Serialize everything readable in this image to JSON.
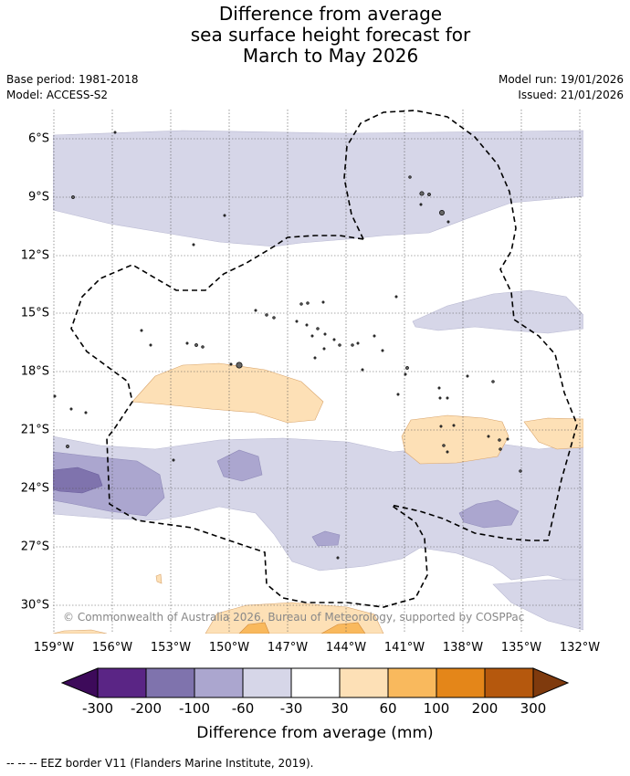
{
  "title_lines": [
    "Difference from average",
    "sea surface height forecast for",
    "March to May 2026"
  ],
  "meta": {
    "base_period": "Base period: 1981-2018",
    "model": "Model: ACCESS-S2",
    "model_run": "Model run: 19/01/2026",
    "issued": "Issued: 21/01/2026"
  },
  "map": {
    "lon_ticks": [
      "159°W",
      "156°W",
      "153°W",
      "150°W",
      "147°W",
      "144°W",
      "141°W",
      "138°W",
      "135°W",
      "132°W"
    ],
    "lat_ticks": [
      "6°S",
      "9°S",
      "12°S",
      "15°S",
      "18°S",
      "21°S",
      "24°S",
      "27°S",
      "30°S"
    ],
    "copyright": "© Commonwealth of Australia 2026, Bureau of Meteorology, supported by COSPPac"
  },
  "colorbar": {
    "labels": [
      "-300",
      "-200",
      "-100",
      "-60",
      "-30",
      "30",
      "60",
      "100",
      "200",
      "300"
    ],
    "colors": [
      "#3d0a5a",
      "#5a2585",
      "#7f73ad",
      "#aba6cf",
      "#d6d6e8",
      "#ffffff",
      "#fde0b6",
      "#f9b95d",
      "#e48619",
      "#b5580d",
      "#7f3a0d"
    ],
    "title": "Difference from average (mm)"
  },
  "footer": "--  --  -- EEZ border V11 (Flanders Marine Institute, 2019)."
}
